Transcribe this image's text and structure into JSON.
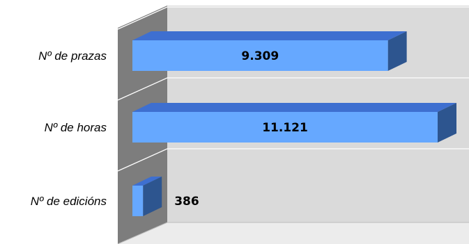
{
  "chart_data": {
    "type": "bar",
    "orientation": "horizontal",
    "three_d": true,
    "categories": [
      "Nº de prazas",
      "Nº de horas",
      "Nº de edicións"
    ],
    "values": [
      9309,
      11121,
      386
    ],
    "value_labels": [
      "9.309",
      "11.121",
      "386"
    ],
    "title": "",
    "xlabel": "",
    "ylabel": "",
    "xlim": [
      0,
      12000
    ],
    "grid": true,
    "legend": "none",
    "colors": {
      "bar_front": "#66a8ff",
      "bar_top": "#3e6fd0",
      "bar_side": "#2d558f",
      "back_wall": "#dadada",
      "side_wall": "#7d7d7d",
      "floor": "#ececec",
      "grid": "#ffffff"
    }
  }
}
